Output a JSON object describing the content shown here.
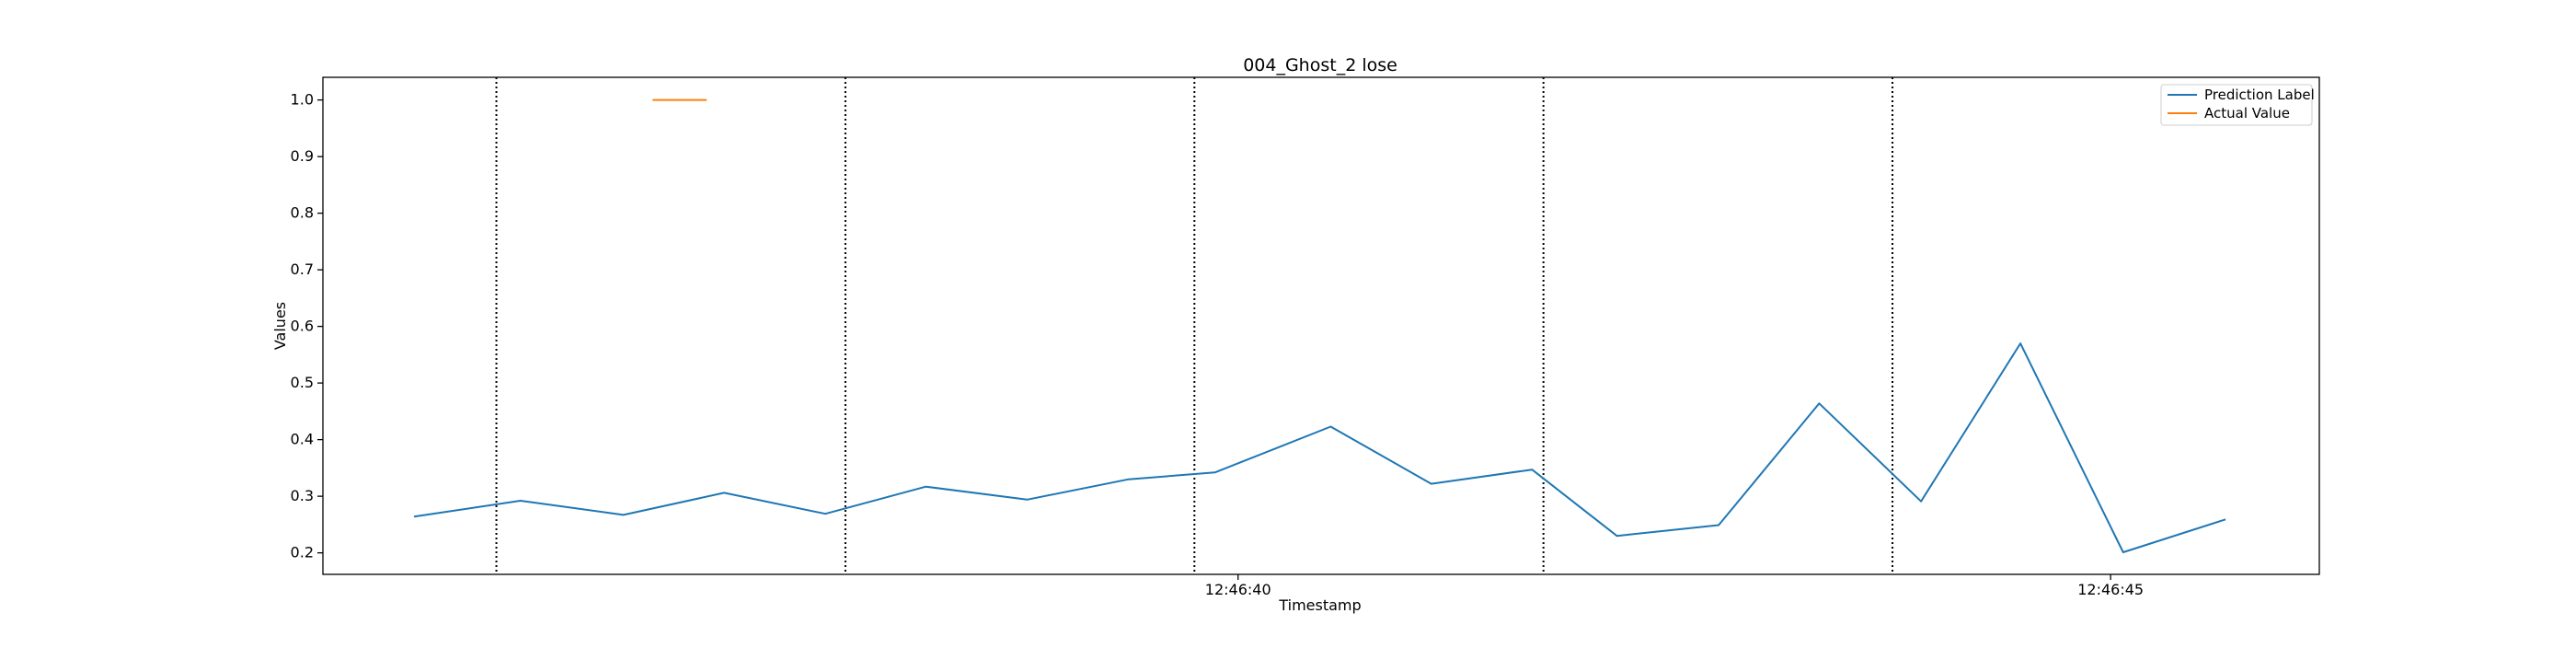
{
  "chart_data": {
    "type": "line",
    "title": "004_Ghost_2 lose",
    "xlabel": "Timestamp",
    "ylabel": "Values",
    "x_tick_labels": [
      {
        "time": "12:46:40",
        "label": "12:46:40"
      },
      {
        "time": "12:46:45",
        "label": "12:46:45"
      }
    ],
    "xlim": [
      "12:46:34.756",
      "12:46:46.196"
    ],
    "ylim": [
      0.162,
      1.04
    ],
    "y_ticks": [
      0.2,
      0.3,
      0.4,
      0.5,
      0.6,
      0.7,
      0.8,
      0.9,
      1.0
    ],
    "y_tick_labels": [
      "0.2",
      "0.3",
      "0.4",
      "0.5",
      "0.6",
      "0.7",
      "0.8",
      "0.9",
      "1.0"
    ],
    "vlines": [
      "12:46:35.750",
      "12:46:37.750",
      "12:46:39.750",
      "12:46:41.750",
      "12:46:43.750"
    ],
    "series": [
      {
        "name": "Prediction Label",
        "color": "#1f77b4",
        "x": [
          "12:46:35.278",
          "12:46:35.888",
          "12:46:36.478",
          "12:46:37.055",
          "12:46:37.635",
          "12:46:38.211",
          "12:46:38.791",
          "12:46:39.373",
          "12:46:39.867",
          "12:46:40.531",
          "12:46:41.107",
          "12:46:41.685",
          "12:46:42.171",
          "12:46:42.754",
          "12:46:43.330",
          "12:46:43.914",
          "12:46:44.483",
          "12:46:45.072",
          "12:46:45.659"
        ],
        "y": [
          0.264,
          0.292,
          0.267,
          0.306,
          0.269,
          0.317,
          0.294,
          0.33,
          0.342,
          0.423,
          0.322,
          0.347,
          0.23,
          0.249,
          0.464,
          0.291,
          0.57,
          0.201,
          0.259
        ]
      },
      {
        "name": "Actual Value",
        "color": "#ff7f0e",
        "x": [
          "12:46:36.645",
          "12:46:36.955"
        ],
        "y": [
          1.0,
          1.0
        ]
      }
    ],
    "legend": {
      "position": "top-right"
    },
    "grid": false
  }
}
